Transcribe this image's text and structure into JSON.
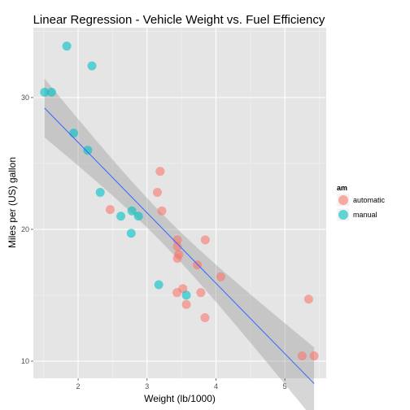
{
  "chart_data": {
    "type": "scatter",
    "title": "Linear Regression - Vehicle Weight vs. Fuel Efficiency",
    "xlabel": "Weight (lb/1000)",
    "ylabel": "Miles per (US) gallon",
    "xlim": [
      1.35,
      5.6
    ],
    "ylim": [
      8.7,
      35.3
    ],
    "x_ticks": [
      2,
      3,
      4,
      5
    ],
    "x_tick_labels": [
      "2",
      "3",
      "4",
      "5"
    ],
    "y_ticks": [
      10,
      20,
      30
    ],
    "y_tick_labels": [
      "10",
      "20",
      "30"
    ],
    "grid": true,
    "legend": {
      "title": "am",
      "placement": "right",
      "entries": [
        {
          "label": "automatic",
          "color": "#F8766D"
        },
        {
          "label": "manual",
          "color": "#00BFC4"
        }
      ]
    },
    "series": [
      {
        "name": "automatic",
        "color": "#F8766D",
        "x": [
          3.215,
          3.44,
          3.46,
          3.57,
          3.19,
          3.15,
          3.44,
          3.44,
          4.07,
          3.73,
          3.78,
          5.25,
          5.424,
          5.345,
          3.52,
          3.435,
          3.84,
          3.845,
          2.465
        ],
        "y": [
          21.4,
          18.7,
          18.1,
          14.3,
          24.4,
          22.8,
          19.2,
          17.8,
          16.4,
          17.3,
          15.2,
          10.4,
          10.4,
          14.7,
          15.5,
          15.2,
          13.3,
          19.2,
          21.5
        ]
      },
      {
        "name": "manual",
        "color": "#00BFC4",
        "x": [
          2.62,
          2.875,
          2.32,
          2.2,
          1.615,
          1.835,
          1.935,
          2.14,
          1.513,
          3.17,
          2.77,
          3.57,
          2.78
        ],
        "y": [
          21.0,
          21.0,
          22.8,
          32.4,
          30.4,
          33.9,
          27.3,
          26.0,
          30.4,
          15.8,
          19.7,
          15.0,
          21.4
        ]
      }
    ],
    "regression": {
      "intercept": 37.285,
      "slope": -5.344,
      "x_range": [
        1.513,
        5.424
      ],
      "line_color": "#3366FF",
      "band_color": "#999999"
    }
  }
}
